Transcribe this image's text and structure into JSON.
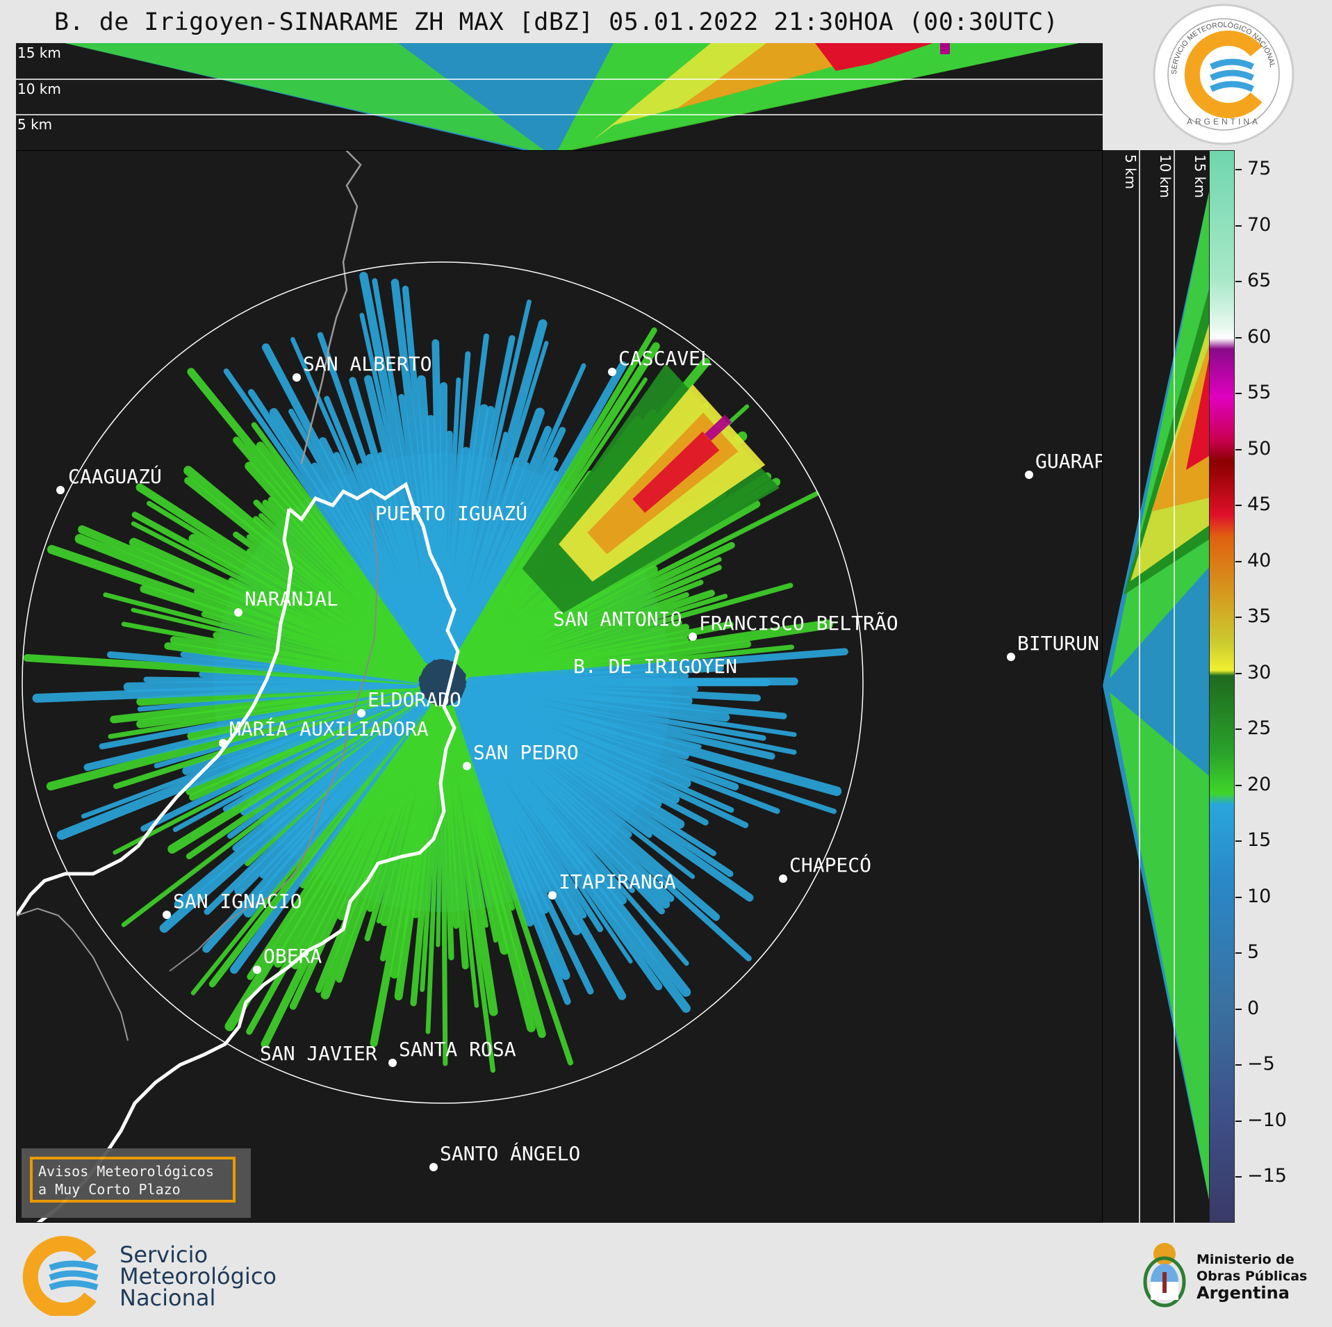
{
  "title": "B. de Irigoyen-SINARAME ZH MAX [dBZ] 05.01.2022 21:30HOA (00:30UTC)",
  "top_panel": {
    "height_labels": [
      "15 km",
      "10 km",
      "5 km"
    ]
  },
  "side_panel": {
    "height_labels": [
      "5 km",
      "10 km",
      "15 km"
    ]
  },
  "colorbar": {
    "unit": "dBZ",
    "ticks": [
      "75",
      "70",
      "65",
      "60",
      "55",
      "50",
      "45",
      "40",
      "35",
      "30",
      "25",
      "20",
      "15",
      "10",
      "5",
      "0",
      "−5",
      "−10",
      "−15"
    ]
  },
  "cities": [
    {
      "name": "SAN ALBERTO"
    },
    {
      "name": "CASCAVEL"
    },
    {
      "name": "CAAGUAZÚ"
    },
    {
      "name": "GUARAP"
    },
    {
      "name": "PUERTO IGUAZÚ"
    },
    {
      "name": "NARANJAL"
    },
    {
      "name": "SAN ANTONIO"
    },
    {
      "name": "FRANCISCO BELTRÃO"
    },
    {
      "name": "BITURUN"
    },
    {
      "name": "B. DE IRIGOYEN"
    },
    {
      "name": "ELDORADO"
    },
    {
      "name": "MARÍA AUXILIADORA"
    },
    {
      "name": "SAN PEDRO"
    },
    {
      "name": "CHAPECÓ"
    },
    {
      "name": "ITAPIRANGA"
    },
    {
      "name": "SAN IGNACIO"
    },
    {
      "name": "OBERÁ"
    },
    {
      "name": "SAN JAVIER"
    },
    {
      "name": "SANTA ROSA"
    },
    {
      "name": "SANTO ÁNGELO"
    }
  ],
  "warning": {
    "line1": "Avisos Meteorológicos",
    "line2": "a Muy Corto Plazo"
  },
  "logo_top": {
    "ring_text": "SERVICIO METEOROLÓGICO NACIONAL",
    "bottom_text": "ARGENTINA"
  },
  "footer": {
    "smn_line1": "Servicio",
    "smn_line2": "Meteorológico",
    "smn_line3": "Nacional",
    "ministry_line1": "Ministerio de",
    "ministry_line2": "Obras Públicas",
    "ministry_line3": "Argentina"
  },
  "colors": {
    "background": "#1a1a1a",
    "weak_blue": "#2aa6dc",
    "green": "#3fd52a",
    "dark_green": "#1f8a1f",
    "yellow": "#e8e83a",
    "orange": "#e59a1a",
    "red": "#e0102a",
    "magenta": "#b0008a",
    "accent_orange": "#f5a000"
  }
}
